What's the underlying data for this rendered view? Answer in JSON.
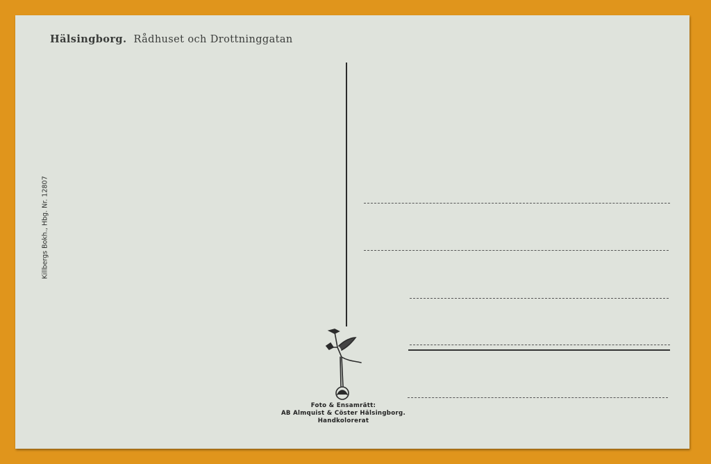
{
  "postcard": {
    "title_place": "Hälsingborg.",
    "title_subject": "Rådhuset och Drottninggatan",
    "publisher": "Killbergs Bokh., Hbg. Nr. 12807",
    "credits": {
      "line1": "Foto & Ensamrätt:",
      "line2": "AB Almquist & Cöster Hälsingborg.",
      "line3": "Handkolorerat"
    },
    "logo_icon": "mercury-figure-on-globe-icon",
    "colors": {
      "background": "#e0951c",
      "card": "#dfe3dc",
      "ink": "#2b2b2b"
    }
  }
}
